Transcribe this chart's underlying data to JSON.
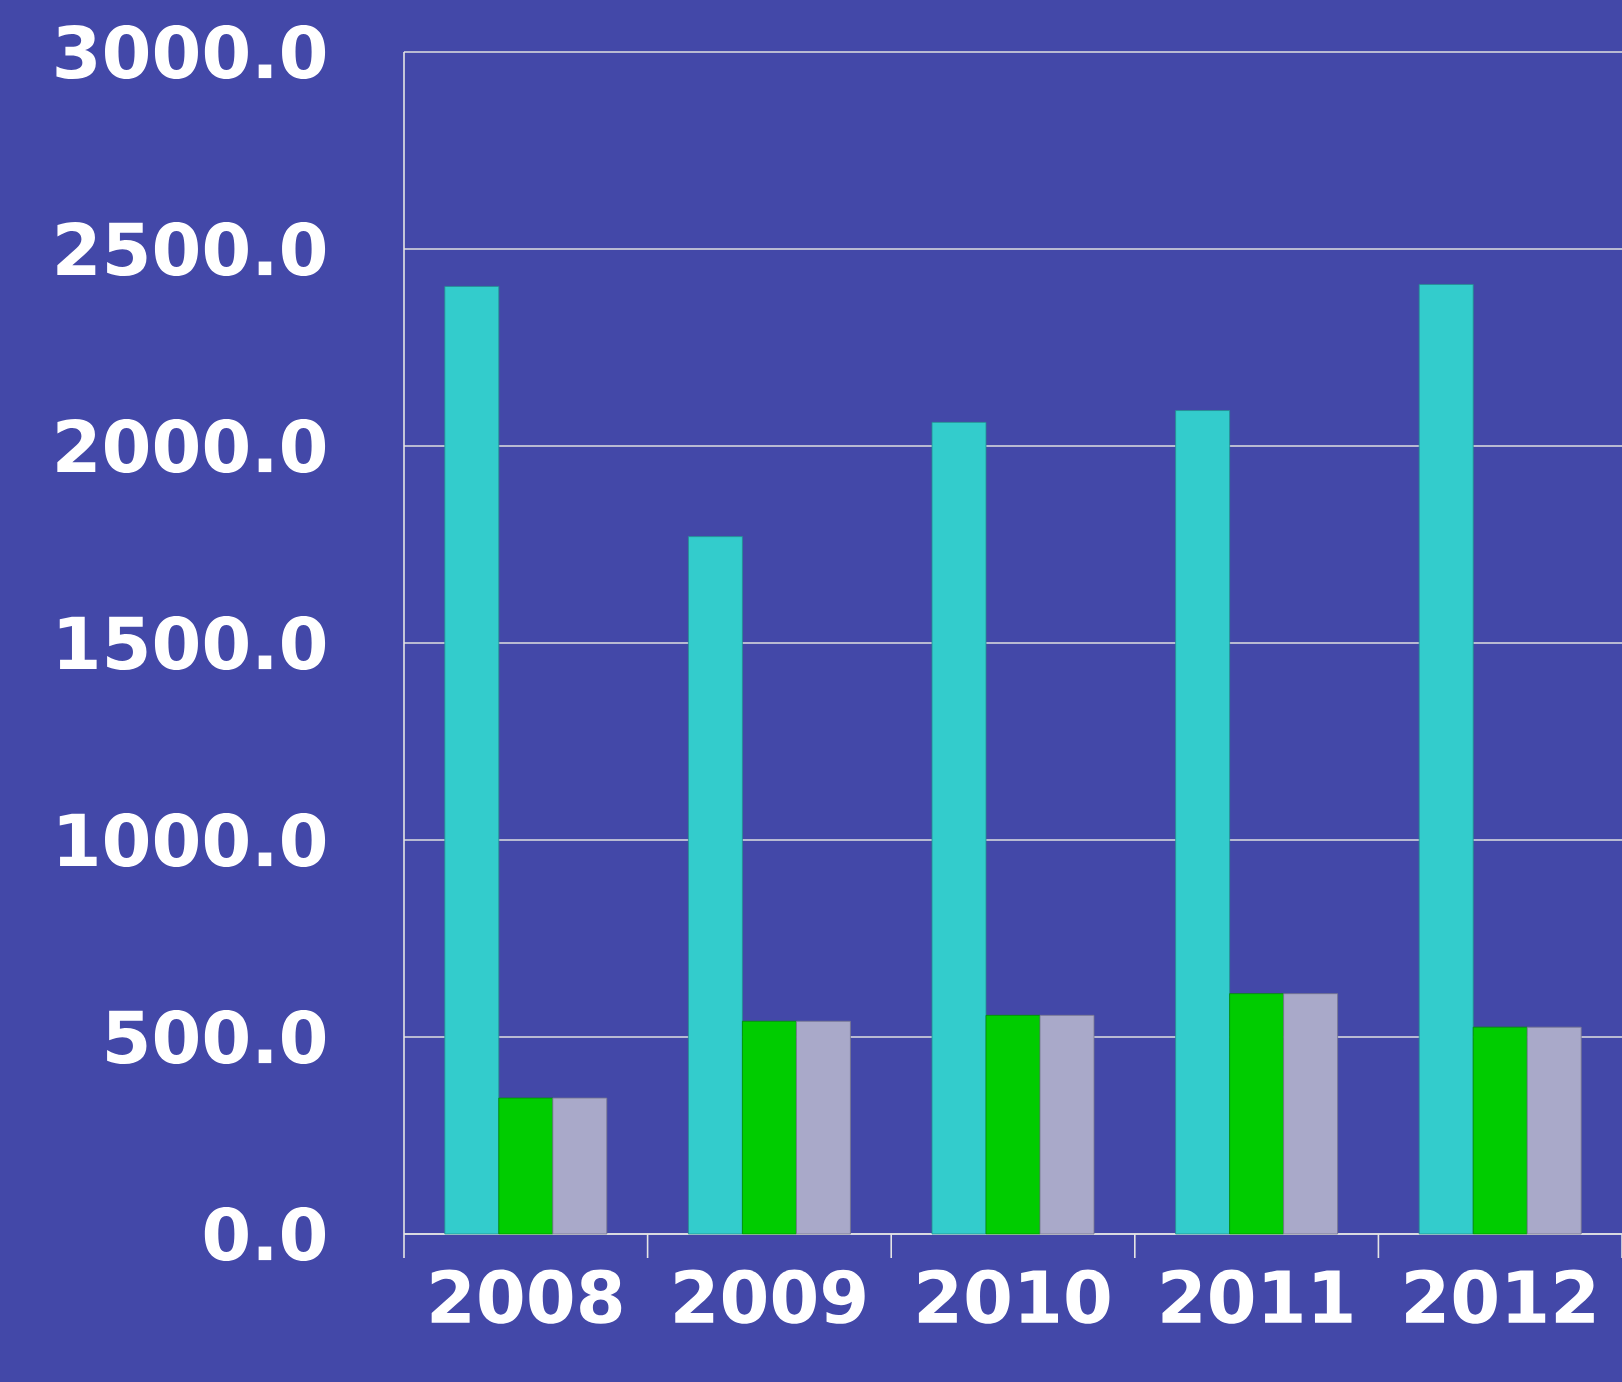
{
  "chart_data": {
    "type": "bar",
    "categories": [
      "2008",
      "2009",
      "2010",
      "2011",
      "2012"
    ],
    "series": [
      {
        "color": "#33cccc",
        "values": [
          2405,
          1770,
          2060,
          2090,
          2410
        ]
      },
      {
        "color": "#00cc00",
        "values": [
          345,
          540,
          555,
          610,
          525
        ]
      },
      {
        "color": "#a9a9c9",
        "values": [
          345,
          540,
          555,
          610,
          525
        ]
      }
    ],
    "ylim": [
      0,
      3000
    ],
    "yticks": [
      {
        "value": 0,
        "label": "0.0"
      },
      {
        "value": 500,
        "label": "500.0"
      },
      {
        "value": 1000,
        "label": "1000.0"
      },
      {
        "value": 1500,
        "label": "1500.0"
      },
      {
        "value": 2000,
        "label": "2000.0"
      },
      {
        "value": 2500,
        "label": "2500.0"
      },
      {
        "value": 3000,
        "label": "3000.0"
      }
    ],
    "grid": "y"
  }
}
